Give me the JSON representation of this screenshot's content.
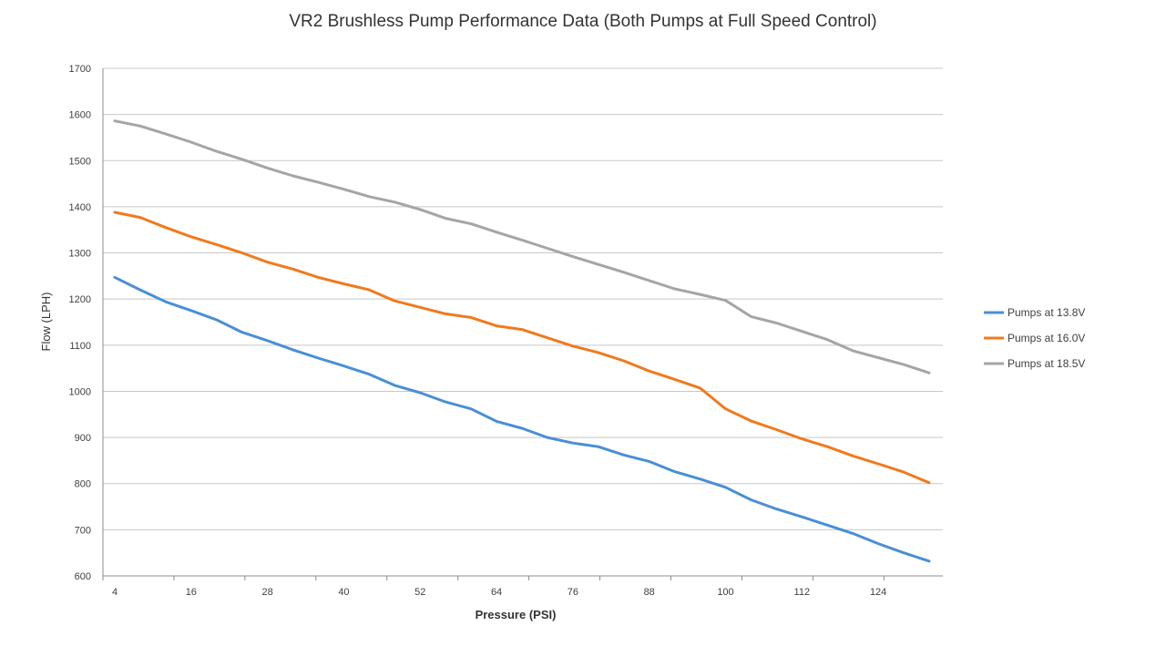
{
  "chart_data": {
    "type": "line",
    "title": "VR2 Brushless Pump Performance Data (Both Pumps at Full Speed Control)",
    "xlabel": "Pressure (PSI)",
    "ylabel": "Flow (LPH)",
    "xlim": [
      4,
      132
    ],
    "ylim": [
      600,
      1700
    ],
    "x_tick_labels": [
      "4",
      "16",
      "28",
      "40",
      "52",
      "64",
      "76",
      "88",
      "100",
      "112",
      "124"
    ],
    "y_tick_labels": [
      "600",
      "700",
      "800",
      "900",
      "1000",
      "1100",
      "1200",
      "1300",
      "1400",
      "1500",
      "1600",
      "1700"
    ],
    "grid": "horizontal",
    "legend_position": "right",
    "x": [
      4,
      8,
      12,
      16,
      20,
      24,
      28,
      32,
      36,
      40,
      44,
      48,
      52,
      56,
      60,
      64,
      68,
      72,
      76,
      80,
      84,
      88,
      92,
      96,
      100,
      104,
      108,
      112,
      116,
      120,
      124,
      128,
      132
    ],
    "series": [
      {
        "name": "Pumps at 13.8V",
        "color": "#4a8fd4",
        "values": [
          1247,
          1220,
          1194,
          1175,
          1155,
          1128,
          1110,
          1090,
          1072,
          1055,
          1037,
          1013,
          997,
          977,
          962,
          935,
          920,
          900,
          888,
          880,
          862,
          848,
          826,
          810,
          792,
          765,
          745,
          728,
          710,
          692,
          670,
          650,
          632
        ]
      },
      {
        "name": "Pumps at 16.0V",
        "color": "#f07a1e",
        "values": [
          1388,
          1377,
          1355,
          1335,
          1318,
          1300,
          1280,
          1265,
          1247,
          1233,
          1220,
          1196,
          1182,
          1168,
          1160,
          1142,
          1134,
          1116,
          1098,
          1084,
          1066,
          1044,
          1026,
          1007,
          962,
          936,
          917,
          897,
          880,
          860,
          843,
          825,
          802
        ]
      },
      {
        "name": "Pumps at 18.5V",
        "color": "#a5a5a5",
        "values": [
          1586,
          1575,
          1558,
          1540,
          1520,
          1503,
          1484,
          1467,
          1453,
          1438,
          1422,
          1410,
          1394,
          1375,
          1363,
          1345,
          1328,
          1310,
          1292,
          1275,
          1258,
          1240,
          1222,
          1210,
          1197,
          1162,
          1148,
          1130,
          1112,
          1088,
          1073,
          1058,
          1040
        ]
      }
    ]
  }
}
